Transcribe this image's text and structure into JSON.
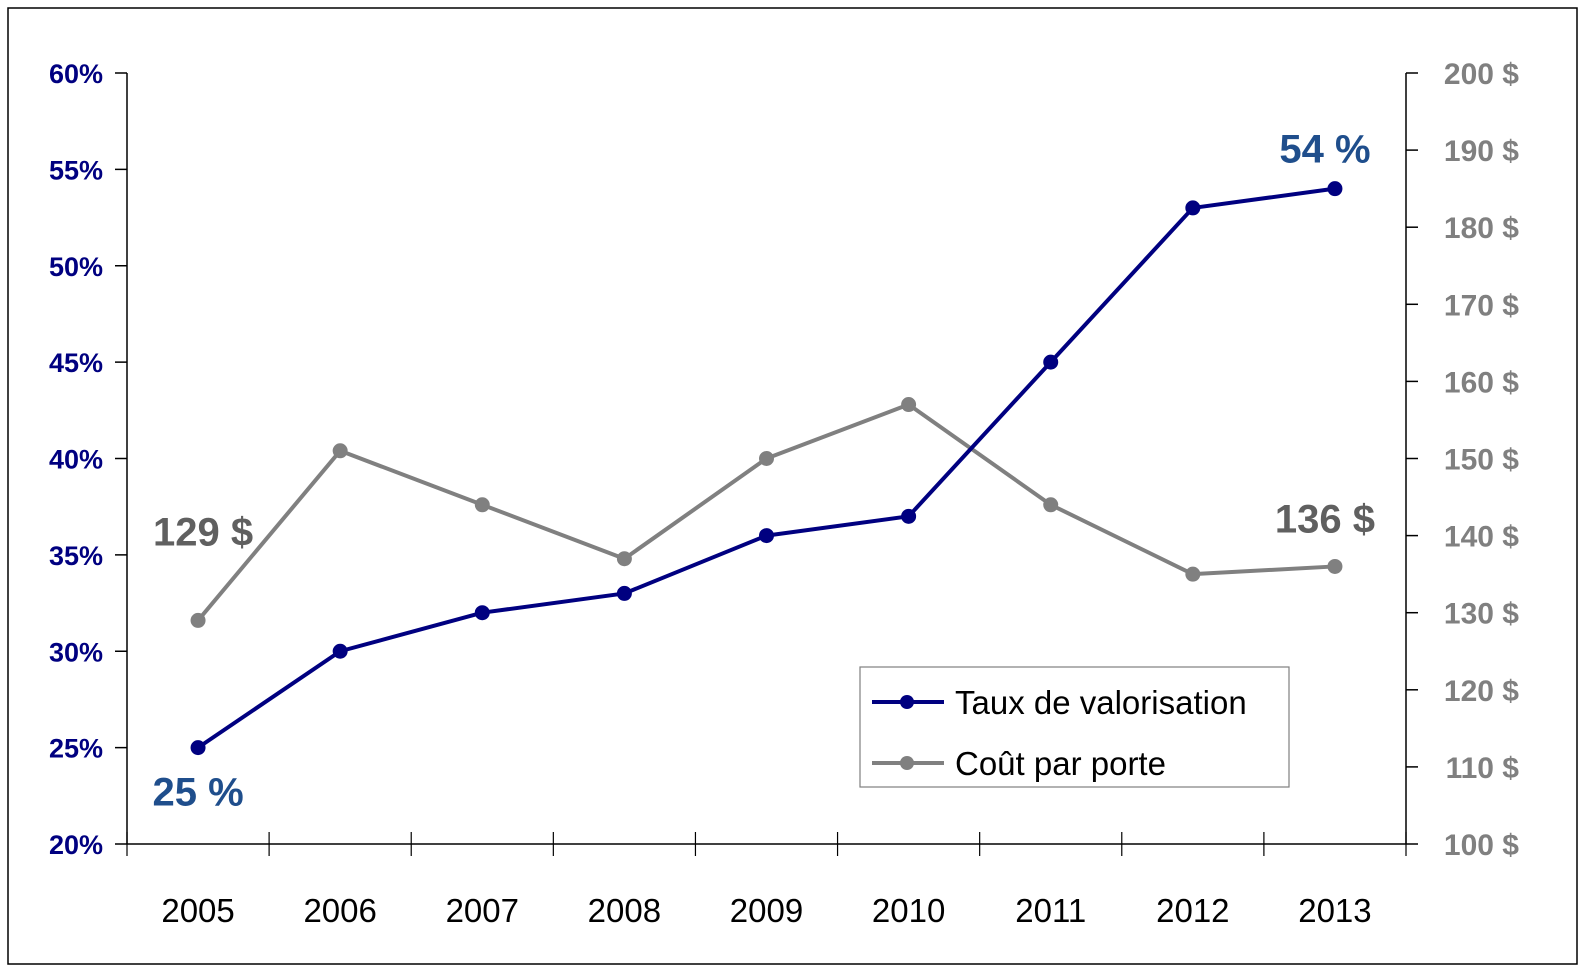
{
  "chart_data": {
    "type": "line",
    "title": "",
    "xlabel": "",
    "ylabel": "",
    "categories": [
      "2005",
      "2006",
      "2007",
      "2008",
      "2009",
      "2010",
      "2011",
      "2012",
      "2013"
    ],
    "y_left": {
      "range": [
        20,
        60
      ],
      "step": 5,
      "tick_labels": [
        "20%",
        "25%",
        "30%",
        "35%",
        "40%",
        "45%",
        "50%",
        "55%",
        "60%"
      ]
    },
    "y_right": {
      "range": [
        100,
        200
      ],
      "step": 10,
      "tick_labels": [
        "100 $",
        "110 $",
        "120 $",
        "130 $",
        "140 $",
        "150 $",
        "160 $",
        "170 $",
        "180 $",
        "190 $",
        "200 $"
      ]
    },
    "series": [
      {
        "name": "Taux de valorisation",
        "axis": "left",
        "color": "#000080",
        "values": [
          25,
          30,
          32,
          33,
          36,
          37,
          45,
          53,
          54
        ]
      },
      {
        "name": "Coût par porte",
        "axis": "right",
        "color": "#808080",
        "values": [
          129,
          151,
          144,
          137,
          150,
          157,
          144,
          135,
          136
        ]
      }
    ],
    "annotations": [
      {
        "text": "25 %",
        "series": 0,
        "index": 0,
        "color": "#1f4e8c"
      },
      {
        "text": "54 %",
        "series": 0,
        "index": 8,
        "color": "#1f4e8c"
      },
      {
        "text": "129 $",
        "series": 1,
        "index": 0,
        "color": "#606060"
      },
      {
        "text": "136 $",
        "series": 1,
        "index": 8,
        "color": "#606060"
      }
    ],
    "colors": {
      "left_axis_labels": "#000080",
      "right_axis_labels": "#808080"
    },
    "legend": {
      "position": "bottom-right-inside",
      "entries": [
        "Taux de valorisation",
        "Coût par porte"
      ]
    },
    "grid": false
  }
}
